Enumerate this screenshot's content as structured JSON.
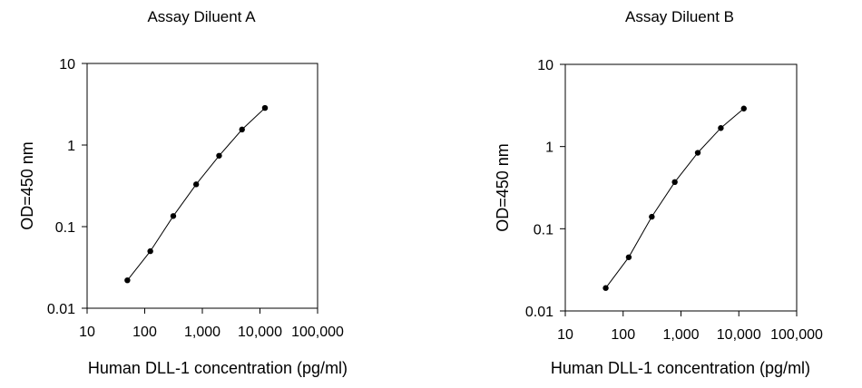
{
  "chart_data": [
    {
      "type": "scatter",
      "title": "Assay Diluent A",
      "xlabel": "Human DLL-1 concentration (pg/ml)",
      "ylabel": "OD=450 nm",
      "x_scale": "log",
      "y_scale": "log",
      "xlim": [
        10,
        100000
      ],
      "ylim": [
        0.01,
        10
      ],
      "x_ticks": [
        "10",
        "100",
        "1,000",
        "10,000",
        "100,000"
      ],
      "y_ticks": [
        "0.01",
        "0.1",
        "1",
        "10"
      ],
      "grid": false,
      "legend": "none",
      "line": true,
      "series": [
        {
          "x": [
            50,
            125,
            313,
            781,
            1953,
            4883,
            12207
          ],
          "y": [
            0.022,
            0.05,
            0.135,
            0.33,
            0.74,
            1.55,
            2.85
          ]
        }
      ]
    },
    {
      "type": "scatter",
      "title": "Assay Diluent B",
      "xlabel": "Human DLL-1 concentration (pg/ml)",
      "ylabel": "OD=450 nm",
      "x_scale": "log",
      "y_scale": "log",
      "xlim": [
        10,
        100000
      ],
      "ylim": [
        0.01,
        10
      ],
      "x_ticks": [
        "10",
        "100",
        "1,000",
        "10,000",
        "100,000"
      ],
      "y_ticks": [
        "0.01",
        "0.1",
        "1",
        "10"
      ],
      "grid": false,
      "legend": "none",
      "line": true,
      "series": [
        {
          "x": [
            50,
            125,
            313,
            781,
            1953,
            4883,
            12207
          ],
          "y": [
            0.019,
            0.045,
            0.14,
            0.37,
            0.84,
            1.68,
            2.9
          ]
        }
      ]
    }
  ]
}
